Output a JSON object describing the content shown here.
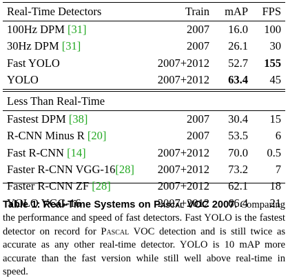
{
  "table": {
    "columns": [
      "Train",
      "mAP",
      "FPS"
    ],
    "sections": [
      {
        "heading": "Real-Time Detectors",
        "rows": [
          {
            "name": "100Hz DPM ",
            "cite": "[31]",
            "train": "2007",
            "map": "16.0",
            "fps": "100",
            "map_bold": false,
            "fps_bold": false
          },
          {
            "name": "30Hz DPM ",
            "cite": "[31]",
            "train": "2007",
            "map": "26.1",
            "fps": "30",
            "map_bold": false,
            "fps_bold": false
          },
          {
            "name": "Fast YOLO",
            "cite": "",
            "train": "2007+2012",
            "map": "52.7",
            "fps": "155",
            "map_bold": false,
            "fps_bold": true
          },
          {
            "name": "YOLO",
            "cite": "",
            "train": "2007+2012",
            "map": "63.4",
            "fps": "45",
            "map_bold": true,
            "fps_bold": false
          }
        ]
      },
      {
        "heading": "Less Than Real-Time",
        "rows": [
          {
            "name": "Fastest DPM ",
            "cite": "[38]",
            "train": "2007",
            "map": "30.4",
            "fps": "15",
            "map_bold": false,
            "fps_bold": false
          },
          {
            "name": "R-CNN Minus R ",
            "cite": "[20]",
            "train": "2007",
            "map": "53.5",
            "fps": "6",
            "map_bold": false,
            "fps_bold": false
          },
          {
            "name": "Fast R-CNN ",
            "cite": "[14]",
            "train": "2007+2012",
            "map": "70.0",
            "fps": "0.5",
            "map_bold": false,
            "fps_bold": false
          },
          {
            "name": "Faster R-CNN VGG-16",
            "cite": "[28]",
            "train": "2007+2012",
            "map": "73.2",
            "fps": "7",
            "map_bold": false,
            "fps_bold": false
          },
          {
            "name": "Faster R-CNN ZF ",
            "cite": "[28]",
            "train": "2007+2012",
            "map": "62.1",
            "fps": "18",
            "map_bold": false,
            "fps_bold": false
          },
          {
            "name": "YOLO VGG-16",
            "cite": "",
            "train": "2007+2012",
            "map": "66.4",
            "fps": "21",
            "map_bold": false,
            "fps_bold": false
          }
        ]
      }
    ]
  },
  "caption": {
    "label": "Table 1:",
    "title_prefix": "Real-Time Systems on ",
    "title_sc": "Pascal",
    "title_suffix": " VOC 2007.",
    "text_1": " Comparing the performance and speed of fast detectors. Fast YOLO is the fastest detector on record for ",
    "text_sc": "Pascal",
    "text_2": " VOC detection and is still twice as accurate as any other real-time detector. YOLO is 10 mAP more accurate than the fast version while still well above real-time in speed."
  }
}
